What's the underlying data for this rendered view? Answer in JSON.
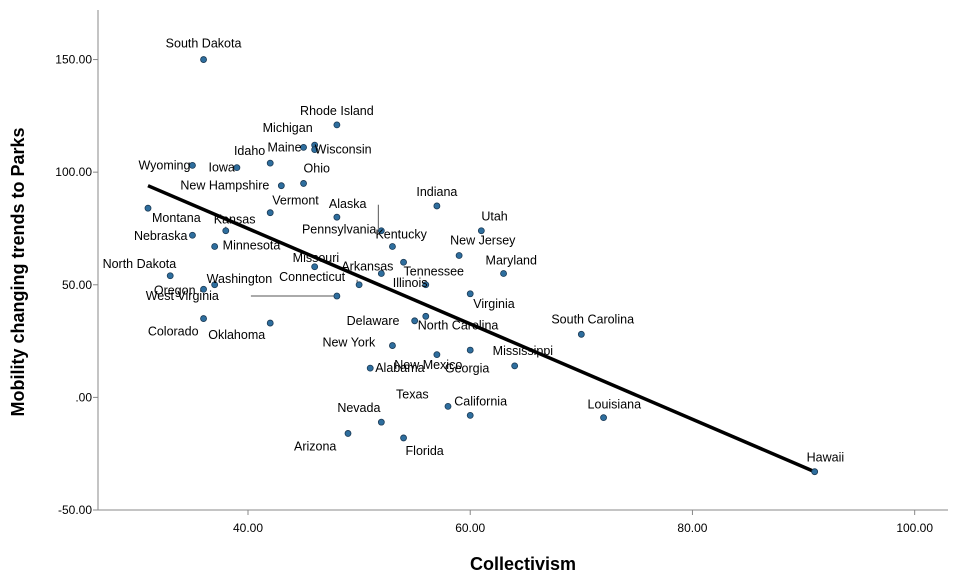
{
  "chart_data": {
    "type": "scatter",
    "title": "",
    "xlabel": "Collectivism",
    "ylabel": "Mobility changing trends to Parks",
    "xlim": [
      26.5,
      103
    ],
    "ylim": [
      -50,
      172
    ],
    "x_ticks": [
      40,
      60,
      80,
      100
    ],
    "x_tick_labels": [
      "40.00",
      "60.00",
      "80.00",
      "100.00"
    ],
    "y_ticks": [
      150,
      100,
      50,
      0,
      -50
    ],
    "y_tick_labels": [
      "150.00",
      "100.00",
      "50.00",
      ".00",
      "-50.00"
    ],
    "grid": false,
    "legend": "none",
    "colors": {
      "point_fill": "#2e6e9e",
      "point_stroke": "#1b3a55",
      "fit_line": "#000000",
      "axis": "#888888"
    },
    "fit_line": {
      "x": [
        31,
        91
      ],
      "y": [
        94,
        -33
      ]
    },
    "points": [
      {
        "label": "South Dakota",
        "x": 36,
        "y": 150
      },
      {
        "label": "Rhode Island",
        "x": 48,
        "y": 121
      },
      {
        "label": "Michigan",
        "x": 46,
        "y": 112
      },
      {
        "label": "Maine",
        "x": 45,
        "y": 111
      },
      {
        "label": "Wisconsin",
        "x": 46,
        "y": 110
      },
      {
        "label": "Idaho",
        "x": 42,
        "y": 104
      },
      {
        "label": "Iowa",
        "x": 39,
        "y": 102
      },
      {
        "label": "Wyoming",
        "x": 35,
        "y": 103
      },
      {
        "label": "Ohio",
        "x": 45,
        "y": 95
      },
      {
        "label": "New Hampshire",
        "x": 43,
        "y": 94
      },
      {
        "label": "Vermont",
        "x": 42,
        "y": 82
      },
      {
        "label": "Alaska",
        "x": 48,
        "y": 80
      },
      {
        "label": "Indiana",
        "x": 57,
        "y": 85
      },
      {
        "label": "Utah",
        "x": 61,
        "y": 74
      },
      {
        "label": "Montana",
        "x": 31,
        "y": 84
      },
      {
        "label": "Kansas",
        "x": 38,
        "y": 74
      },
      {
        "label": "Nebraska",
        "x": 35,
        "y": 72
      },
      {
        "label": "Pennsylvania",
        "x": 52,
        "y": 74
      },
      {
        "label": "Kentucky",
        "x": 53,
        "y": 67
      },
      {
        "label": "Minnesota",
        "x": 37,
        "y": 67
      },
      {
        "label": "Missouri",
        "x": 46,
        "y": 58
      },
      {
        "label": "New Jersey",
        "x": 59,
        "y": 63
      },
      {
        "label": "Arkansas",
        "x": 52,
        "y": 55
      },
      {
        "label": "Tennessee",
        "x": 54,
        "y": 60
      },
      {
        "label": "Maryland",
        "x": 63,
        "y": 55
      },
      {
        "label": "North Dakota",
        "x": 33,
        "y": 54
      },
      {
        "label": "Washington",
        "x": 37,
        "y": 50
      },
      {
        "label": "Oregon",
        "x": 36,
        "y": 48
      },
      {
        "label": "Connecticut",
        "x": 50,
        "y": 50
      },
      {
        "label": "Illinois",
        "x": 56,
        "y": 50
      },
      {
        "label": "West Virginia",
        "x": 48,
        "y": 45
      },
      {
        "label": "Virginia",
        "x": 60,
        "y": 46
      },
      {
        "label": "Colorado",
        "x": 36,
        "y": 35
      },
      {
        "label": "Oklahoma",
        "x": 42,
        "y": 33
      },
      {
        "label": "Delaware",
        "x": 55,
        "y": 34
      },
      {
        "label": "North Carolina",
        "x": 56,
        "y": 36
      },
      {
        "label": "South Carolina",
        "x": 70,
        "y": 28
      },
      {
        "label": "New York",
        "x": 53,
        "y": 23
      },
      {
        "label": "Mississippi",
        "x": 64,
        "y": 14
      },
      {
        "label": "Georgia",
        "x": 57,
        "y": 19
      },
      {
        "label": "Alabama",
        "x": 51,
        "y": 13
      },
      {
        "label": "New Mexico",
        "x": 60,
        "y": 21
      },
      {
        "label": "Texas",
        "x": 58,
        "y": -4
      },
      {
        "label": "California",
        "x": 60,
        "y": -8
      },
      {
        "label": "Louisiana",
        "x": 72,
        "y": -9
      },
      {
        "label": "Nevada",
        "x": 52,
        "y": -11
      },
      {
        "label": "Arizona",
        "x": 49,
        "y": -16
      },
      {
        "label": "Florida",
        "x": 54,
        "y": -18
      },
      {
        "label": "Hawaii",
        "x": 91,
        "y": -33
      }
    ]
  }
}
